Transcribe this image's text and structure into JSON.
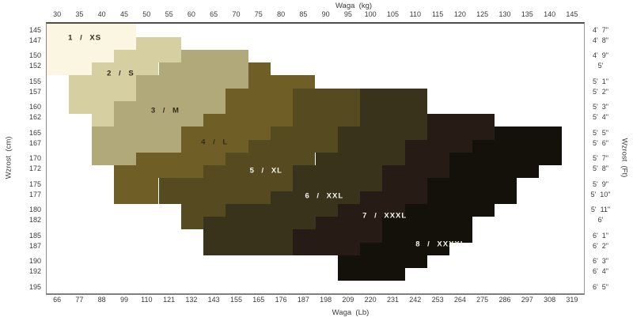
{
  "axes": {
    "top": {
      "title": "Waga  (kg)",
      "ticks": [
        30,
        35,
        40,
        45,
        50,
        55,
        60,
        65,
        70,
        75,
        80,
        85,
        90,
        95,
        100,
        105,
        110,
        115,
        120,
        125,
        130,
        135,
        140,
        145
      ]
    },
    "bottom": {
      "title": "Waga  (Lb)",
      "ticks": [
        66,
        77,
        88,
        99,
        110,
        121,
        132,
        143,
        155,
        165,
        176,
        187,
        198,
        209,
        220,
        231,
        242,
        253,
        264,
        275,
        286,
        297,
        308,
        319
      ]
    },
    "left": {
      "title": "Wzrost  (cm)",
      "ticks": [
        145,
        147,
        150,
        152,
        155,
        157,
        160,
        162,
        165,
        167,
        170,
        172,
        175,
        177,
        180,
        182,
        185,
        187,
        190,
        192,
        195
      ]
    },
    "right": {
      "title": "Wzrost  (Ft)",
      "ticks": [
        "4'  7\"",
        "4'  8\"",
        "4'  9\"",
        "5'",
        "5'  1\"",
        "5'  2\"",
        "5'  3\"",
        "5'  4\"",
        "5'  5\"",
        "5'  6\"",
        "5'  7\"",
        "5'  8\"",
        "5'  9\"",
        "5'  10\"",
        "5'  11\"",
        "6'",
        "6'  1\"",
        "6'  2\"",
        "6'  3\"",
        "6'  4\"",
        "6'  5\""
      ]
    }
  },
  "chart_data": {
    "type": "heatmap",
    "title": "",
    "xlabel": "Waga (kg) / Waga (Lb)",
    "ylabel": "Wzrost (cm) / Wzrost (Ft)",
    "x_range_kg": [
      27.5,
      147.5
    ],
    "y_range_cm": [
      145,
      195
    ],
    "legend_position": "none",
    "grid": false,
    "sizes": [
      {
        "id": 1,
        "label": "1 / XS",
        "color": "#faf6e1",
        "text_color": "#2f2c1c",
        "label_kg": 36,
        "label_cm": 146.2
      },
      {
        "id": 2,
        "label": "2 / S",
        "color": "#d6cfa2",
        "text_color": "#2f2c1c",
        "label_kg": 44,
        "label_cm": 153.2
      },
      {
        "id": 3,
        "label": "3 / M",
        "color": "#b2a97b",
        "text_color": "#2f2c1c",
        "label_kg": 54,
        "label_cm": 160.3
      },
      {
        "id": 4,
        "label": "4 / L",
        "color": "#6f5f26",
        "text_color": "#2f2c1c",
        "label_kg": 65,
        "label_cm": 166.5
      },
      {
        "id": 5,
        "label": "5 / XL",
        "color": "#564a20",
        "text_color": "#f5f5f0",
        "label_kg": 76.5,
        "label_cm": 172.1
      },
      {
        "id": 6,
        "label": "6 / XXL",
        "color": "#3a331b",
        "text_color": "#f5f5f0",
        "label_kg": 89.5,
        "label_cm": 177.0
      },
      {
        "id": 7,
        "label": "7 / XXXL",
        "color": "#261b15",
        "text_color": "#f5f5f0",
        "label_kg": 103,
        "label_cm": 180.8
      },
      {
        "id": 8,
        "label": "8 / XXXXL",
        "color": "#14110b",
        "text_color": "#f5f5f0",
        "label_kg": 115.5,
        "label_cm": 186.3
      }
    ],
    "rows": [
      {
        "cm": 145,
        "segments": [
          [
            1,
            27.5,
            47.5
          ]
        ]
      },
      {
        "cm": 147,
        "segments": [
          [
            1,
            27.5,
            47.5
          ],
          [
            2,
            47.5,
            57.5
          ]
        ]
      },
      {
        "cm": 150,
        "segments": [
          [
            1,
            27.5,
            42.5
          ],
          [
            2,
            42.5,
            57.5
          ],
          [
            3,
            57.5,
            72.5
          ]
        ]
      },
      {
        "cm": 152,
        "segments": [
          [
            1,
            27.5,
            37.5
          ],
          [
            2,
            37.5,
            52.5
          ],
          [
            3,
            52.5,
            72.5
          ],
          [
            4,
            72.5,
            77.5
          ]
        ]
      },
      {
        "cm": 155,
        "segments": [
          [
            2,
            32.5,
            47.5
          ],
          [
            3,
            47.5,
            72.5
          ],
          [
            4,
            72.5,
            87.5
          ]
        ]
      },
      {
        "cm": 157,
        "segments": [
          [
            2,
            32.5,
            47.5
          ],
          [
            3,
            47.5,
            67.5
          ],
          [
            4,
            67.5,
            82.5
          ],
          [
            5,
            82.5,
            97.5
          ],
          [
            6,
            97.5,
            112.5
          ]
        ]
      },
      {
        "cm": 160,
        "segments": [
          [
            2,
            32.5,
            42.5
          ],
          [
            3,
            42.5,
            67.5
          ],
          [
            4,
            67.5,
            82.5
          ],
          [
            5,
            82.5,
            97.5
          ],
          [
            6,
            97.5,
            112.5
          ]
        ]
      },
      {
        "cm": 162,
        "segments": [
          [
            2,
            37.5,
            42.5
          ],
          [
            3,
            42.5,
            62.5
          ],
          [
            4,
            62.5,
            82.5
          ],
          [
            5,
            82.5,
            97.5
          ],
          [
            6,
            97.5,
            112.5
          ],
          [
            7,
            112.5,
            127.5
          ]
        ]
      },
      {
        "cm": 165,
        "segments": [
          [
            3,
            37.5,
            57.5
          ],
          [
            4,
            57.5,
            77.5
          ],
          [
            5,
            77.5,
            92.5
          ],
          [
            6,
            92.5,
            112.5
          ],
          [
            7,
            112.5,
            127.5
          ],
          [
            8,
            127.5,
            142.5
          ]
        ]
      },
      {
        "cm": 167,
        "segments": [
          [
            3,
            37.5,
            57.5
          ],
          [
            4,
            57.5,
            72.5
          ],
          [
            5,
            72.5,
            92.5
          ],
          [
            6,
            92.5,
            107.5
          ],
          [
            7,
            107.5,
            122.5
          ],
          [
            8,
            122.5,
            142.5
          ]
        ]
      },
      {
        "cm": 170,
        "segments": [
          [
            3,
            37.5,
            47.5
          ],
          [
            4,
            47.5,
            67.5
          ],
          [
            5,
            67.5,
            87.5
          ],
          [
            6,
            87.5,
            107.5
          ],
          [
            7,
            107.5,
            117.5
          ],
          [
            8,
            117.5,
            142.5
          ]
        ]
      },
      {
        "cm": 172,
        "segments": [
          [
            4,
            42.5,
            62.5
          ],
          [
            5,
            62.5,
            82.5
          ],
          [
            6,
            82.5,
            102.5
          ],
          [
            7,
            102.5,
            117.5
          ],
          [
            8,
            117.5,
            137.5
          ]
        ]
      },
      {
        "cm": 175,
        "segments": [
          [
            4,
            42.5,
            52.5
          ],
          [
            5,
            52.5,
            82.5
          ],
          [
            6,
            82.5,
            102.5
          ],
          [
            7,
            102.5,
            112.5
          ],
          [
            8,
            112.5,
            132.5
          ]
        ]
      },
      {
        "cm": 177,
        "segments": [
          [
            4,
            42.5,
            52.5
          ],
          [
            5,
            52.5,
            77.5
          ],
          [
            6,
            77.5,
            97.5
          ],
          [
            7,
            97.5,
            112.5
          ],
          [
            8,
            112.5,
            132.5
          ]
        ]
      },
      {
        "cm": 180,
        "segments": [
          [
            5,
            57.5,
            67.5
          ],
          [
            6,
            67.5,
            92.5
          ],
          [
            7,
            92.5,
            107.5
          ],
          [
            8,
            107.5,
            127.5
          ]
        ]
      },
      {
        "cm": 182,
        "segments": [
          [
            5,
            57.5,
            62.5
          ],
          [
            6,
            62.5,
            87.5
          ],
          [
            7,
            87.5,
            102.5
          ],
          [
            8,
            102.5,
            122.5
          ]
        ]
      },
      {
        "cm": 185,
        "segments": [
          [
            6,
            62.5,
            82.5
          ],
          [
            7,
            82.5,
            102.5
          ],
          [
            8,
            102.5,
            122.5
          ]
        ]
      },
      {
        "cm": 187,
        "segments": [
          [
            6,
            62.5,
            82.5
          ],
          [
            7,
            82.5,
            97.5
          ],
          [
            8,
            97.5,
            117.5
          ]
        ]
      },
      {
        "cm": 190,
        "segments": [
          [
            8,
            92.5,
            112.5
          ]
        ]
      },
      {
        "cm": 192,
        "segments": [
          [
            8,
            92.5,
            107.5
          ]
        ]
      },
      {
        "cm": 195,
        "segments": []
      }
    ]
  }
}
